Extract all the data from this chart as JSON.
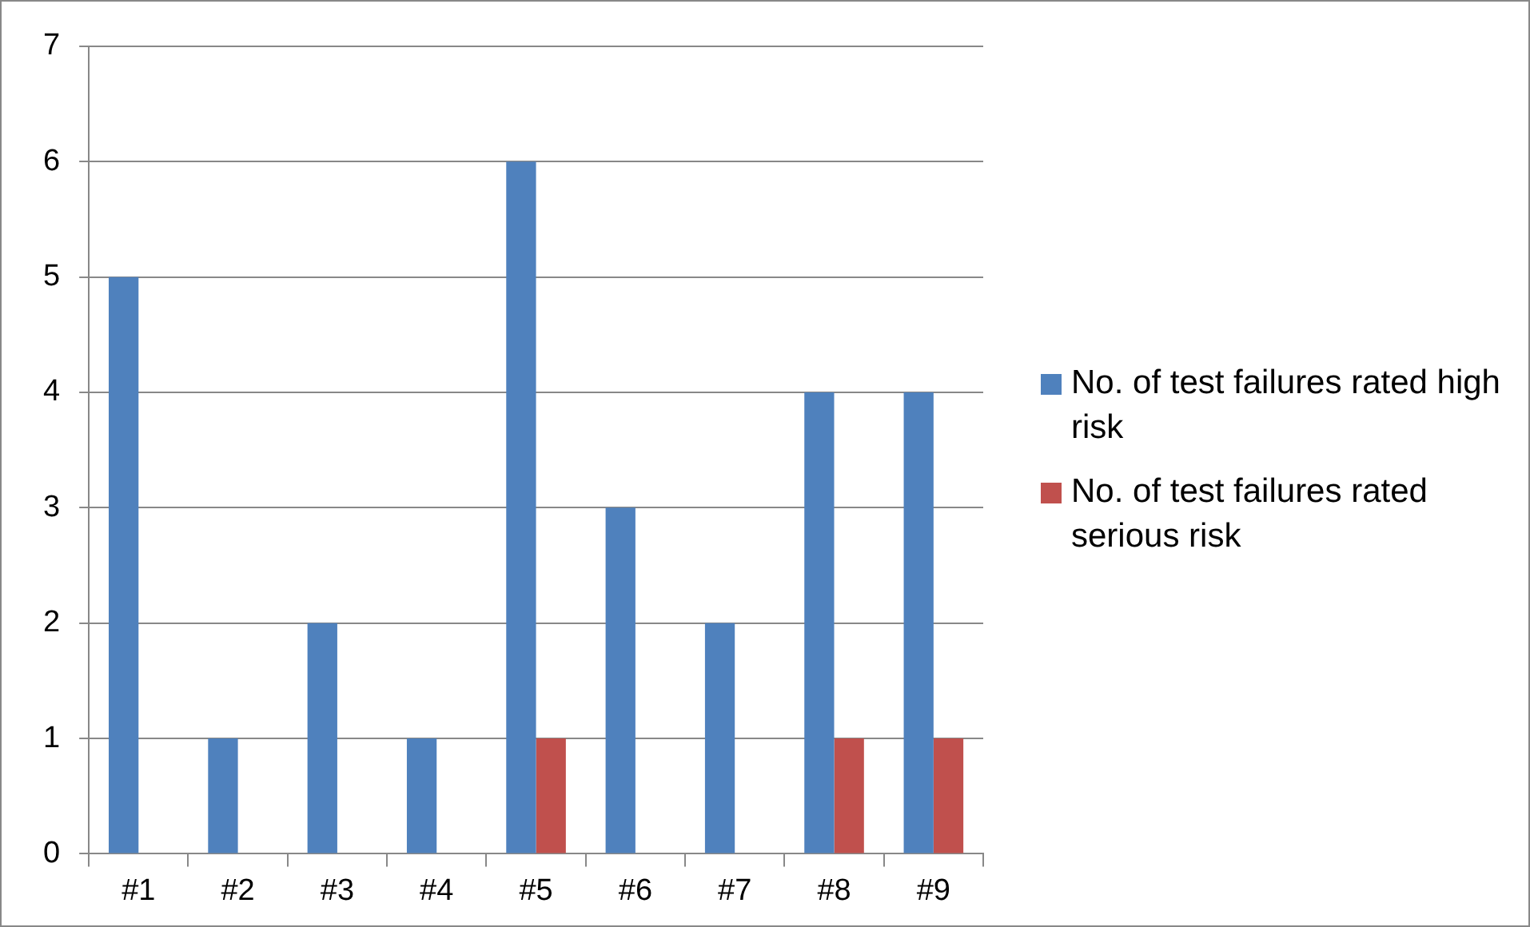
{
  "chart_data": {
    "type": "bar",
    "categories": [
      "#1",
      "#2",
      "#3",
      "#4",
      "#5",
      "#6",
      "#7",
      "#8",
      "#9"
    ],
    "series": [
      {
        "name": "No. of test failures rated high risk",
        "color": "#4f81bd",
        "values": [
          5,
          1,
          2,
          1,
          6,
          3,
          2,
          4,
          4
        ]
      },
      {
        "name": "No. of test failures rated serious risk",
        "color": "#c0504d",
        "values": [
          0,
          0,
          0,
          0,
          1,
          0,
          0,
          1,
          1
        ]
      }
    ],
    "ylim": [
      0,
      7
    ],
    "yticks": [
      0,
      1,
      2,
      3,
      4,
      5,
      6,
      7
    ],
    "grid": "y",
    "legend": "right"
  }
}
